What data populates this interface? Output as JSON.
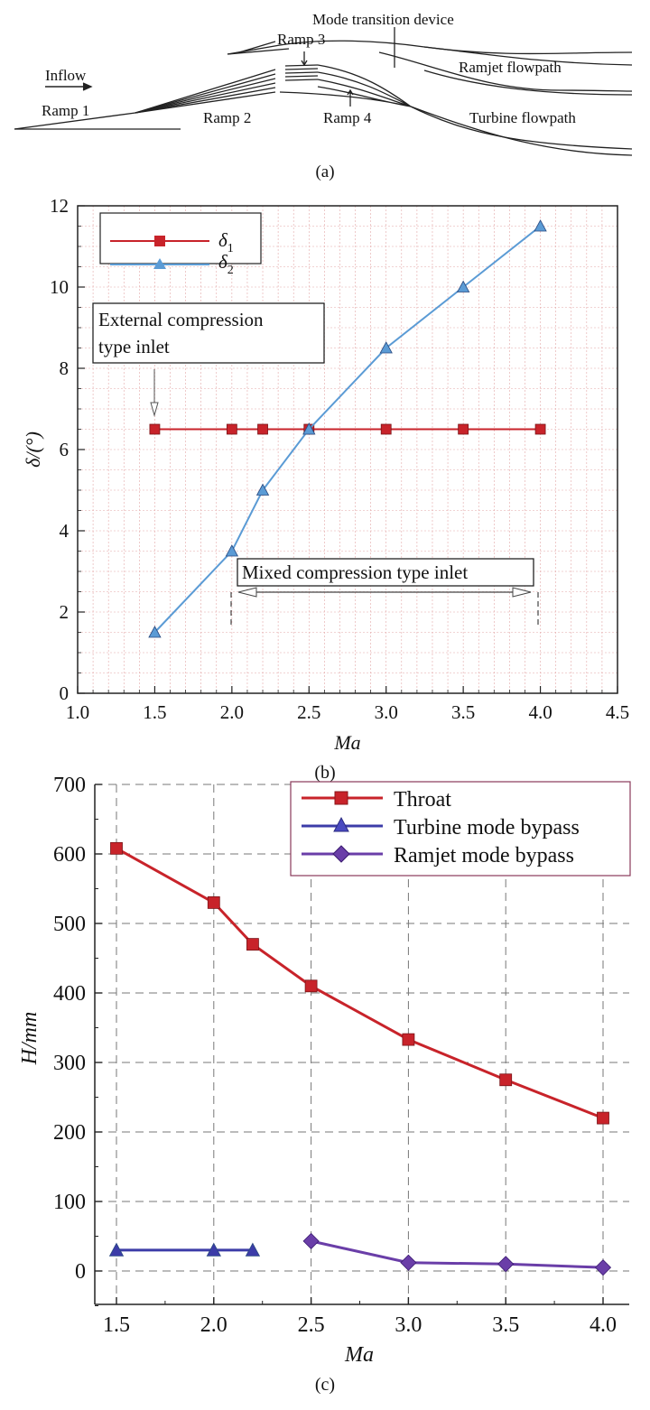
{
  "panel_a": {
    "caption": "(a)",
    "labels": {
      "inflow": "Inflow",
      "ramp1": "Ramp 1",
      "ramp2": "Ramp 2",
      "ramp3": "Ramp 3",
      "ramp4": "Ramp 4",
      "mode_device": "Mode transition device",
      "ramjet_flowpath": "Ramjet flowpath",
      "turbine_flowpath": "Turbine flowpath"
    }
  },
  "colors": {
    "red": "#c8232a",
    "blue": "#5b9bd5",
    "navy": "#3c3ca8",
    "purple": "#6a3ea8",
    "grid": "#e3a7a7"
  },
  "chart_data": [
    {
      "type": "line",
      "panel": "b",
      "caption": "(b)",
      "xlabel": "Ma",
      "ylabel": "δ/(°)",
      "xlim": [
        1.0,
        4.5
      ],
      "ylim": [
        0,
        12
      ],
      "xticks": [
        "1.0",
        "1.5",
        "2.0",
        "2.5",
        "3.0",
        "3.5",
        "4.0",
        "4.5"
      ],
      "yticks": [
        "0",
        "2",
        "4",
        "6",
        "8",
        "10",
        "12"
      ],
      "grid": true,
      "legend_position": "top-left",
      "series": [
        {
          "name": "δ1",
          "name_base": "δ",
          "name_sub": "1",
          "color": "#c8232a",
          "marker": "square",
          "x": [
            1.5,
            2.0,
            2.2,
            2.5,
            3.0,
            3.5,
            4.0
          ],
          "y": [
            6.5,
            6.5,
            6.5,
            6.5,
            6.5,
            6.5,
            6.5
          ]
        },
        {
          "name": "δ2",
          "name_base": "δ",
          "name_sub": "2",
          "color": "#5b9bd5",
          "marker": "triangle",
          "x": [
            1.5,
            2.0,
            2.2,
            2.5,
            3.0,
            3.5,
            4.0
          ],
          "y": [
            1.5,
            3.5,
            5.0,
            6.5,
            8.5,
            10.0,
            11.5
          ]
        }
      ],
      "annotations": {
        "external_line1": "External compression",
        "external_line2": "type inlet",
        "mixed": "Mixed compression type inlet"
      }
    },
    {
      "type": "line",
      "panel": "c",
      "caption": "(c)",
      "xlabel": "Ma",
      "ylabel": "H/mm",
      "xlim": [
        1.5,
        4.0
      ],
      "ylim": [
        -50,
        700
      ],
      "xticks": [
        "1.5",
        "2.0",
        "2.5",
        "3.0",
        "3.5",
        "4.0"
      ],
      "yticks": [
        "0",
        "100",
        "200",
        "300",
        "400",
        "500",
        "600",
        "700"
      ],
      "grid": true,
      "legend_position": "top-right",
      "series": [
        {
          "name": "Throat",
          "color": "#c8232a",
          "marker": "square",
          "x": [
            1.5,
            2.0,
            2.2,
            2.5,
            3.0,
            3.5,
            4.0
          ],
          "y": [
            608,
            530,
            470,
            410,
            333,
            275,
            220
          ]
        },
        {
          "name": "Turbine mode bypass",
          "color": "#3c3ca8",
          "marker": "triangle",
          "x": [
            1.5,
            2.0,
            2.2
          ],
          "y": [
            30,
            30,
            30
          ]
        },
        {
          "name": "Ramjet mode bypass",
          "color": "#6a3ea8",
          "marker": "diamond",
          "x": [
            2.5,
            3.0,
            3.5,
            4.0
          ],
          "y": [
            43,
            12,
            10,
            5
          ]
        }
      ]
    }
  ]
}
